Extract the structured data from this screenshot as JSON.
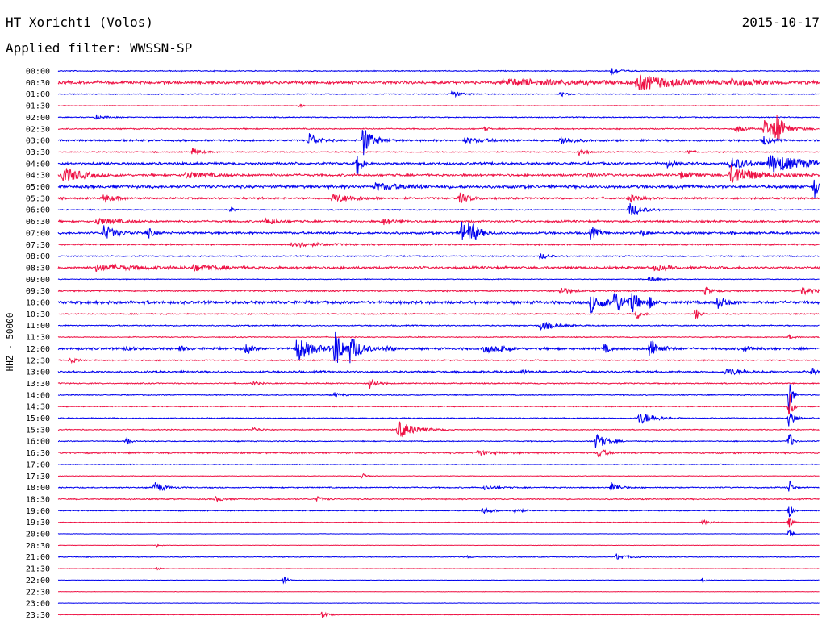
{
  "header": {
    "station": "HT Xorichti (Volos)",
    "date": "2015-10-17",
    "filter_prefix": "Applied filter:",
    "filter_name": "WWSSN-SP"
  },
  "colors": {
    "even_trace": "#0000ee",
    "odd_trace": "#ee1144"
  },
  "chart_data": {
    "type": "line",
    "title": "HT Xorichti (Volos)",
    "ylabel": "HHZ - 50000",
    "xlabel": "",
    "row_labels": [
      "00:00",
      "00:30",
      "01:00",
      "01:30",
      "02:00",
      "02:30",
      "03:00",
      "03:30",
      "04:00",
      "04:30",
      "05:00",
      "05:30",
      "06:00",
      "06:30",
      "07:00",
      "07:30",
      "08:00",
      "08:30",
      "09:00",
      "09:30",
      "10:00",
      "10:30",
      "11:00",
      "11:30",
      "12:00",
      "12:30",
      "13:00",
      "13:30",
      "14:00",
      "14:30",
      "15:00",
      "15:30",
      "16:00",
      "16:30",
      "17:00",
      "17:30",
      "18:00",
      "18:30",
      "19:00",
      "19:30",
      "20:00",
      "20:30",
      "21:00",
      "21:30",
      "22:00",
      "22:30",
      "23:00",
      "23:30"
    ],
    "row_minutes": 30,
    "noise_levels": [
      0.5,
      1.5,
      0.5,
      0.3,
      0.5,
      0.6,
      1.0,
      0.6,
      1.2,
      1.2,
      1.5,
      1.0,
      0.5,
      1.0,
      1.2,
      0.8,
      0.6,
      1.2,
      0.4,
      0.8,
      1.5,
      0.6,
      0.6,
      0.5,
      1.2,
      0.6,
      1.0,
      0.6,
      0.5,
      0.5,
      0.5,
      0.5,
      0.5,
      0.8,
      0.4,
      0.3,
      0.6,
      0.6,
      0.5,
      0.3,
      0.2,
      0.2,
      0.4,
      0.2,
      0.2,
      0.2,
      0.2,
      0.2
    ],
    "events": [
      {
        "row": 0,
        "minute": 21.8,
        "amp": 5,
        "dur": 0.5
      },
      {
        "row": 1,
        "minute": 22.8,
        "amp": 9,
        "dur": 2.5
      },
      {
        "row": 1,
        "minute": 17.5,
        "amp": 4,
        "dur": 6
      },
      {
        "row": 1,
        "minute": 26.5,
        "amp": 4,
        "dur": 1.5
      },
      {
        "row": 2,
        "minute": 15.5,
        "amp": 4,
        "dur": 0.6
      },
      {
        "row": 2,
        "minute": 19.8,
        "amp": 3,
        "dur": 0.4
      },
      {
        "row": 3,
        "minute": 9.5,
        "amp": 3,
        "dur": 0.2
      },
      {
        "row": 4,
        "minute": 1.5,
        "amp": 3,
        "dur": 0.5
      },
      {
        "row": 5,
        "minute": 27.8,
        "amp": 12,
        "dur": 1.2
      },
      {
        "row": 5,
        "minute": 28.3,
        "amp": 20,
        "dur": 0.3
      },
      {
        "row": 5,
        "minute": 26.7,
        "amp": 5,
        "dur": 0.5
      },
      {
        "row": 5,
        "minute": 16.8,
        "amp": 3,
        "dur": 0.2
      },
      {
        "row": 6,
        "minute": 12.0,
        "amp": 20,
        "dur": 0.6
      },
      {
        "row": 6,
        "minute": 9.9,
        "amp": 10,
        "dur": 0.5
      },
      {
        "row": 6,
        "minute": 19.8,
        "amp": 6,
        "dur": 0.7
      },
      {
        "row": 6,
        "minute": 16.0,
        "amp": 3,
        "dur": 1.5
      },
      {
        "row": 6,
        "minute": 27.8,
        "amp": 6,
        "dur": 0.4
      },
      {
        "row": 7,
        "minute": 5.3,
        "amp": 5,
        "dur": 0.5
      },
      {
        "row": 7,
        "minute": 20.5,
        "amp": 6,
        "dur": 0.4
      },
      {
        "row": 7,
        "minute": 24.8,
        "amp": 4,
        "dur": 0.3
      },
      {
        "row": 8,
        "minute": 28.0,
        "amp": 12,
        "dur": 2.2
      },
      {
        "row": 8,
        "minute": 26.5,
        "amp": 8,
        "dur": 1.0
      },
      {
        "row": 8,
        "minute": 24.0,
        "amp": 4,
        "dur": 0.5
      },
      {
        "row": 8,
        "minute": 11.8,
        "amp": 22,
        "dur": 0.2
      },
      {
        "row": 9,
        "minute": 0.2,
        "amp": 10,
        "dur": 1.2
      },
      {
        "row": 9,
        "minute": 26.5,
        "amp": 12,
        "dur": 1.5
      },
      {
        "row": 9,
        "minute": 5.0,
        "amp": 4,
        "dur": 1.5
      },
      {
        "row": 9,
        "minute": 20.8,
        "amp": 3,
        "dur": 0.5
      },
      {
        "row": 9,
        "minute": 24.5,
        "amp": 4,
        "dur": 1.0
      },
      {
        "row": 10,
        "minute": 12.5,
        "amp": 4,
        "dur": 2.0
      },
      {
        "row": 10,
        "minute": 29.8,
        "amp": 16,
        "dur": 0.3
      },
      {
        "row": 11,
        "minute": 1.8,
        "amp": 5,
        "dur": 0.7
      },
      {
        "row": 11,
        "minute": 10.8,
        "amp": 5,
        "dur": 1.5
      },
      {
        "row": 11,
        "minute": 15.8,
        "amp": 6,
        "dur": 0.7
      },
      {
        "row": 11,
        "minute": 22.5,
        "amp": 5,
        "dur": 0.6
      },
      {
        "row": 12,
        "minute": 22.5,
        "amp": 9,
        "dur": 0.8
      },
      {
        "row": 12,
        "minute": 6.8,
        "amp": 4,
        "dur": 0.2
      },
      {
        "row": 13,
        "minute": 1.5,
        "amp": 4,
        "dur": 1.5
      },
      {
        "row": 13,
        "minute": 8.2,
        "amp": 4,
        "dur": 0.8
      },
      {
        "row": 13,
        "minute": 12.8,
        "amp": 4,
        "dur": 0.8
      },
      {
        "row": 14,
        "minute": 1.8,
        "amp": 9,
        "dur": 0.8
      },
      {
        "row": 14,
        "minute": 3.5,
        "amp": 7,
        "dur": 0.4
      },
      {
        "row": 14,
        "minute": 15.9,
        "amp": 14,
        "dur": 0.6
      },
      {
        "row": 14,
        "minute": 16.2,
        "amp": 10,
        "dur": 0.6
      },
      {
        "row": 14,
        "minute": 21.0,
        "amp": 9,
        "dur": 0.4
      },
      {
        "row": 14,
        "minute": 23.0,
        "amp": 5,
        "dur": 0.3
      },
      {
        "row": 15,
        "minute": 9.2,
        "amp": 4,
        "dur": 1.5
      },
      {
        "row": 16,
        "minute": 19.0,
        "amp": 4,
        "dur": 0.5
      },
      {
        "row": 17,
        "minute": 1.5,
        "amp": 4,
        "dur": 2.5
      },
      {
        "row": 17,
        "minute": 5.3,
        "amp": 4,
        "dur": 1.5
      },
      {
        "row": 17,
        "minute": 23.5,
        "amp": 3,
        "dur": 1.0
      },
      {
        "row": 18,
        "minute": 23.3,
        "amp": 4,
        "dur": 0.5
      },
      {
        "row": 19,
        "minute": 19.8,
        "amp": 5,
        "dur": 0.6
      },
      {
        "row": 19,
        "minute": 25.5,
        "amp": 5,
        "dur": 0.4
      },
      {
        "row": 19,
        "minute": 29.2,
        "amp": 5,
        "dur": 0.8
      },
      {
        "row": 20,
        "minute": 21.0,
        "amp": 12,
        "dur": 0.8
      },
      {
        "row": 20,
        "minute": 21.9,
        "amp": 14,
        "dur": 0.7
      },
      {
        "row": 20,
        "minute": 22.6,
        "amp": 12,
        "dur": 0.5
      },
      {
        "row": 20,
        "minute": 23.3,
        "amp": 6,
        "dur": 0.3
      },
      {
        "row": 20,
        "minute": 26.0,
        "amp": 8,
        "dur": 0.5
      },
      {
        "row": 21,
        "minute": 25.1,
        "amp": 8,
        "dur": 0.3
      },
      {
        "row": 21,
        "minute": 22.8,
        "amp": 6,
        "dur": 0.3
      },
      {
        "row": 22,
        "minute": 19.0,
        "amp": 6,
        "dur": 0.9
      },
      {
        "row": 23,
        "minute": 28.8,
        "amp": 3,
        "dur": 0.3
      },
      {
        "row": 24,
        "minute": 9.4,
        "amp": 16,
        "dur": 1.0
      },
      {
        "row": 24,
        "minute": 10.9,
        "amp": 26,
        "dur": 0.5
      },
      {
        "row": 24,
        "minute": 11.5,
        "amp": 14,
        "dur": 0.8
      },
      {
        "row": 24,
        "minute": 7.4,
        "amp": 7,
        "dur": 0.4
      },
      {
        "row": 24,
        "minute": 4.8,
        "amp": 4,
        "dur": 0.3
      },
      {
        "row": 24,
        "minute": 2.7,
        "amp": 4,
        "dur": 0.3
      },
      {
        "row": 24,
        "minute": 12.9,
        "amp": 5,
        "dur": 0.4
      },
      {
        "row": 24,
        "minute": 16.8,
        "amp": 5,
        "dur": 0.7
      },
      {
        "row": 24,
        "minute": 17.5,
        "amp": 4,
        "dur": 0.4
      },
      {
        "row": 24,
        "minute": 21.5,
        "amp": 7,
        "dur": 0.3
      },
      {
        "row": 24,
        "minute": 23.3,
        "amp": 14,
        "dur": 0.6
      },
      {
        "row": 24,
        "minute": 27.0,
        "amp": 3,
        "dur": 0.6
      },
      {
        "row": 25,
        "minute": 0.5,
        "amp": 3,
        "dur": 0.5
      },
      {
        "row": 26,
        "minute": 18.3,
        "amp": 4,
        "dur": 0.3
      },
      {
        "row": 26,
        "minute": 26.3,
        "amp": 4,
        "dur": 1.2
      },
      {
        "row": 26,
        "minute": 29.7,
        "amp": 5,
        "dur": 0.3
      },
      {
        "row": 27,
        "minute": 12.3,
        "amp": 9,
        "dur": 0.4
      },
      {
        "row": 27,
        "minute": 7.7,
        "amp": 3,
        "dur": 0.3
      },
      {
        "row": 28,
        "minute": 10.9,
        "amp": 3,
        "dur": 0.5
      },
      {
        "row": 28,
        "minute": 28.8,
        "amp": 28,
        "dur": 0.2
      },
      {
        "row": 29,
        "minute": 28.8,
        "amp": 20,
        "dur": 0.2
      },
      {
        "row": 30,
        "minute": 22.9,
        "amp": 8,
        "dur": 1.0
      },
      {
        "row": 30,
        "minute": 28.8,
        "amp": 16,
        "dur": 0.3
      },
      {
        "row": 31,
        "minute": 13.4,
        "amp": 12,
        "dur": 1.0
      },
      {
        "row": 31,
        "minute": 7.7,
        "amp": 3,
        "dur": 0.4
      },
      {
        "row": 32,
        "minute": 2.7,
        "amp": 6,
        "dur": 0.2
      },
      {
        "row": 32,
        "minute": 21.2,
        "amp": 11,
        "dur": 0.6
      },
      {
        "row": 32,
        "minute": 28.8,
        "amp": 14,
        "dur": 0.2
      },
      {
        "row": 33,
        "minute": 21.3,
        "amp": 7,
        "dur": 0.4
      },
      {
        "row": 33,
        "minute": 16.5,
        "amp": 3,
        "dur": 1.0
      },
      {
        "row": 35,
        "minute": 12.0,
        "amp": 3,
        "dur": 0.3
      },
      {
        "row": 36,
        "minute": 3.8,
        "amp": 7,
        "dur": 0.6
      },
      {
        "row": 36,
        "minute": 16.8,
        "amp": 3,
        "dur": 0.8
      },
      {
        "row": 36,
        "minute": 21.8,
        "amp": 7,
        "dur": 0.5
      },
      {
        "row": 36,
        "minute": 28.8,
        "amp": 12,
        "dur": 0.2
      },
      {
        "row": 37,
        "minute": 6.2,
        "amp": 3,
        "dur": 0.5
      },
      {
        "row": 37,
        "minute": 10.2,
        "amp": 3,
        "dur": 0.5
      },
      {
        "row": 38,
        "minute": 16.7,
        "amp": 4,
        "dur": 0.7
      },
      {
        "row": 38,
        "minute": 18.0,
        "amp": 4,
        "dur": 0.4
      },
      {
        "row": 38,
        "minute": 28.8,
        "amp": 10,
        "dur": 0.2
      },
      {
        "row": 39,
        "minute": 25.4,
        "amp": 3,
        "dur": 0.4
      },
      {
        "row": 39,
        "minute": 28.8,
        "amp": 10,
        "dur": 0.2
      },
      {
        "row": 40,
        "minute": 28.8,
        "amp": 8,
        "dur": 0.2
      },
      {
        "row": 41,
        "minute": 3.9,
        "amp": 2,
        "dur": 0.2
      },
      {
        "row": 42,
        "minute": 22.0,
        "amp": 4,
        "dur": 0.8
      },
      {
        "row": 42,
        "minute": 16.1,
        "amp": 2,
        "dur": 0.2
      },
      {
        "row": 43,
        "minute": 3.9,
        "amp": 2,
        "dur": 0.2
      },
      {
        "row": 44,
        "minute": 8.9,
        "amp": 7,
        "dur": 0.2
      },
      {
        "row": 44,
        "minute": 25.4,
        "amp": 4,
        "dur": 0.2
      },
      {
        "row": 47,
        "minute": 10.4,
        "amp": 4,
        "dur": 0.4
      }
    ]
  }
}
